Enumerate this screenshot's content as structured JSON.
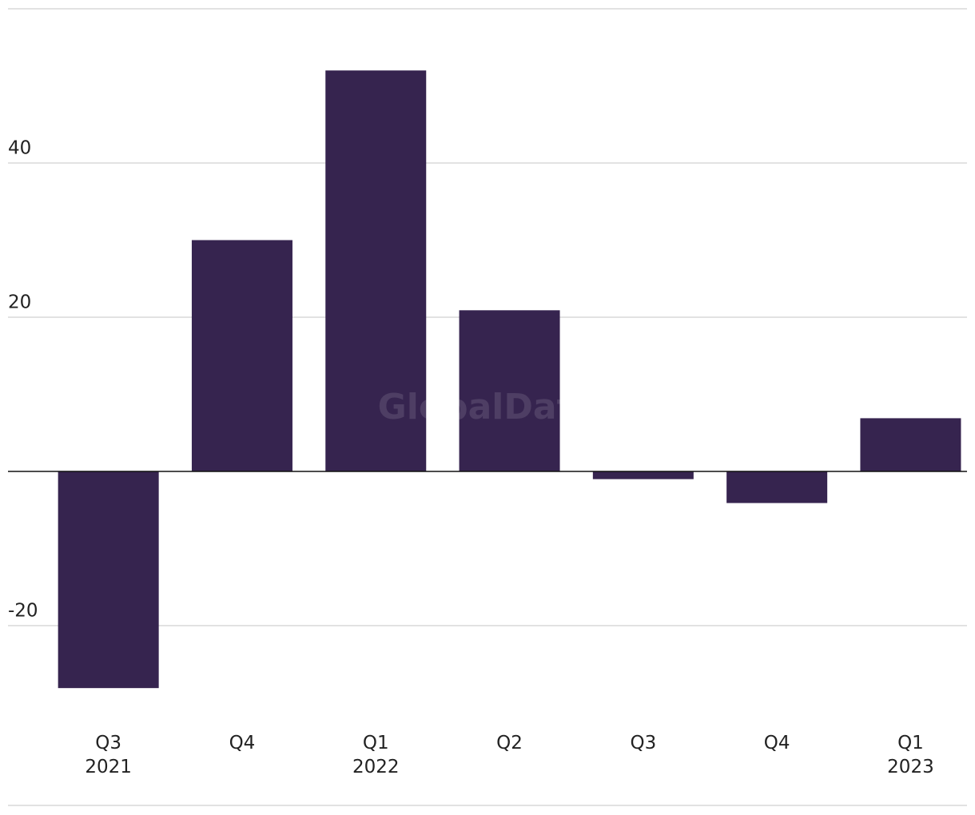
{
  "chart_data": {
    "type": "bar",
    "categories": [
      "Q3\n2021",
      "Q4",
      "Q1\n2022",
      "Q2",
      "Q3",
      "Q4",
      "Q1\n2023"
    ],
    "values": [
      -28.1,
      30,
      52,
      20.9,
      -1,
      -4.1,
      6.9
    ],
    "color": "#36244f",
    "ylim": [
      -32,
      60
    ],
    "yticks": [
      -20,
      20,
      40
    ],
    "grid": true,
    "watermark": "GlobalData"
  }
}
